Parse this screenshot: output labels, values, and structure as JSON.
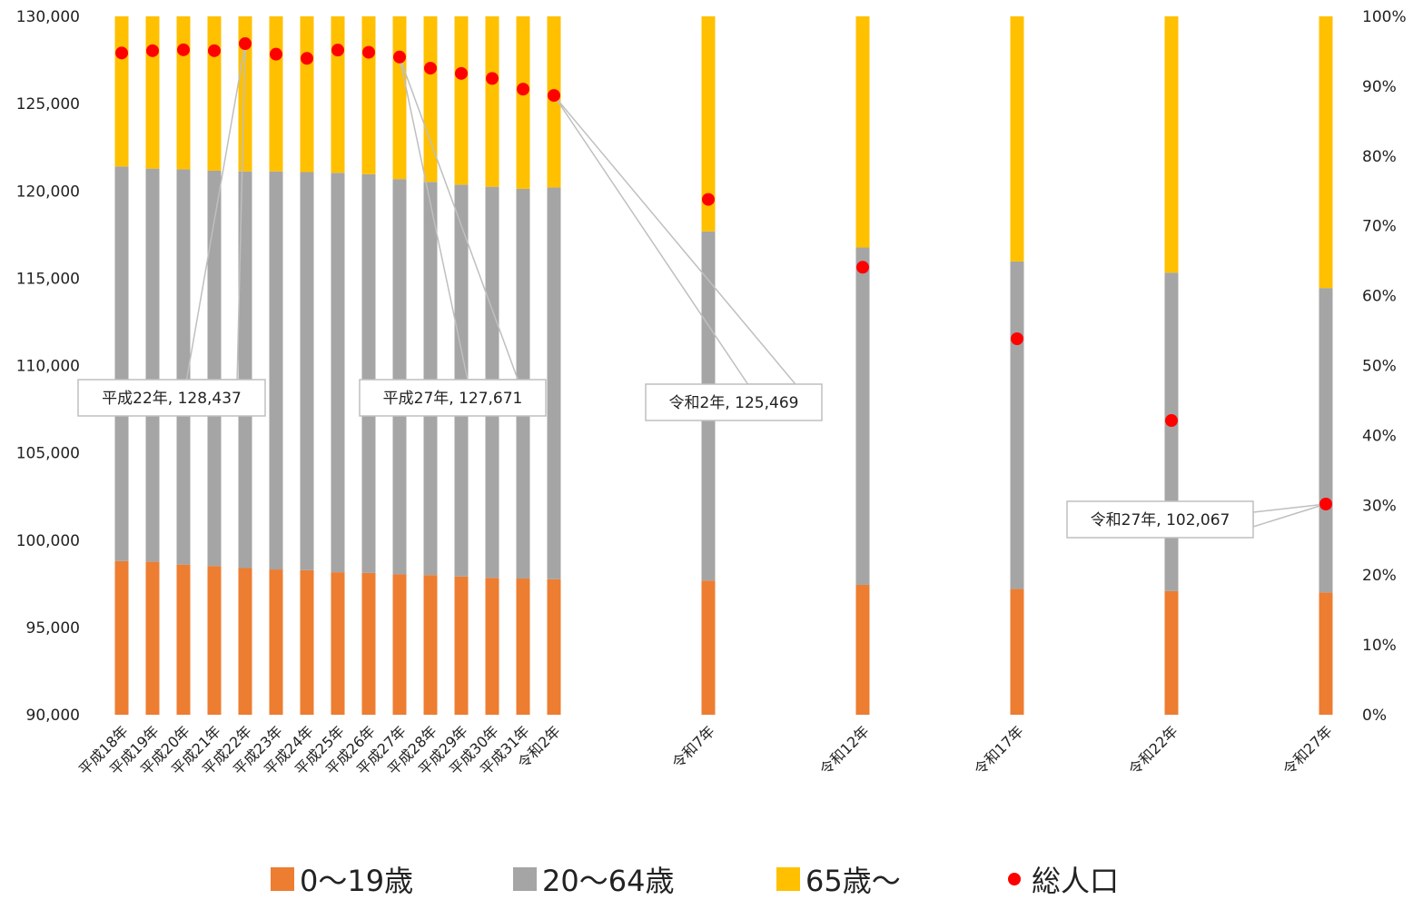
{
  "chart_data": {
    "type": "bar",
    "stacked": true,
    "categories": [
      "平成18年",
      "平成19年",
      "平成20年",
      "平成21年",
      "平成22年",
      "平成23年",
      "平成24年",
      "平成25年",
      "平成26年",
      "平成27年",
      "平成28年",
      "平成29年",
      "平成30年",
      "平成31年",
      "令和2年",
      "令和7年",
      "令和12年",
      "令和17年",
      "令和22年",
      "令和27年"
    ],
    "category_slots": [
      0,
      1,
      2,
      3,
      4,
      5,
      6,
      7,
      8,
      9,
      10,
      11,
      12,
      13,
      14,
      19,
      24,
      29,
      34,
      39
    ],
    "series": [
      {
        "name": "0〜19歳",
        "color": "#ED7D31",
        "axis": "right",
        "values": [
          22.0,
          21.9,
          21.5,
          21.3,
          21.0,
          20.8,
          20.7,
          20.4,
          20.3,
          20.1,
          20.0,
          19.8,
          19.6,
          19.5,
          19.4,
          19.2,
          18.6,
          18.0,
          17.7,
          17.5
        ]
      },
      {
        "name": "20〜64歳",
        "color": "#A5A5A5",
        "axis": "right",
        "values": [
          56.5,
          56.3,
          56.6,
          56.6,
          56.8,
          57.0,
          57.0,
          57.2,
          57.1,
          56.6,
          56.3,
          56.1,
          56.0,
          55.8,
          56.1,
          50.0,
          48.3,
          46.9,
          45.6,
          43.6
        ]
      },
      {
        "name": "65歳〜",
        "color": "#FFC000",
        "axis": "right",
        "values": [
          21.5,
          21.8,
          21.9,
          22.1,
          22.2,
          22.2,
          22.3,
          22.4,
          22.6,
          23.3,
          23.7,
          24.1,
          24.4,
          24.7,
          24.5,
          30.8,
          33.1,
          35.1,
          36.7,
          38.9
        ]
      },
      {
        "name": "総人口",
        "type": "scatter",
        "color": "#FF0000",
        "axis": "left",
        "values": [
          127901,
          128033,
          128084,
          128032,
          128437,
          127834,
          127593,
          128066,
          127942,
          127671,
          127030,
          126731,
          126443,
          125832,
          125469,
          119515,
          115629,
          111534,
          106851,
          102067
        ]
      }
    ],
    "left_axis": {
      "min": 90000,
      "max": 130000,
      "ticks": [
        "90,000",
        "95,000",
        "100,000",
        "105,000",
        "110,000",
        "115,000",
        "120,000",
        "125,000",
        "130,000"
      ]
    },
    "right_axis": {
      "min": 0,
      "max": 100,
      "ticks": [
        "0%",
        "10%",
        "20%",
        "30%",
        "40%",
        "50%",
        "60%",
        "70%",
        "80%",
        "90%",
        "100%"
      ]
    },
    "annotations": [
      {
        "category": "平成22年",
        "text": "平成22年, 128,437"
      },
      {
        "category": "平成27年",
        "text": "平成27年, 127,671"
      },
      {
        "category": "令和2年",
        "text": "令和2年, 125,469"
      },
      {
        "category": "令和27年",
        "text": "令和27年, 102,067"
      }
    ],
    "legend_position": "bottom",
    "grid": false
  }
}
